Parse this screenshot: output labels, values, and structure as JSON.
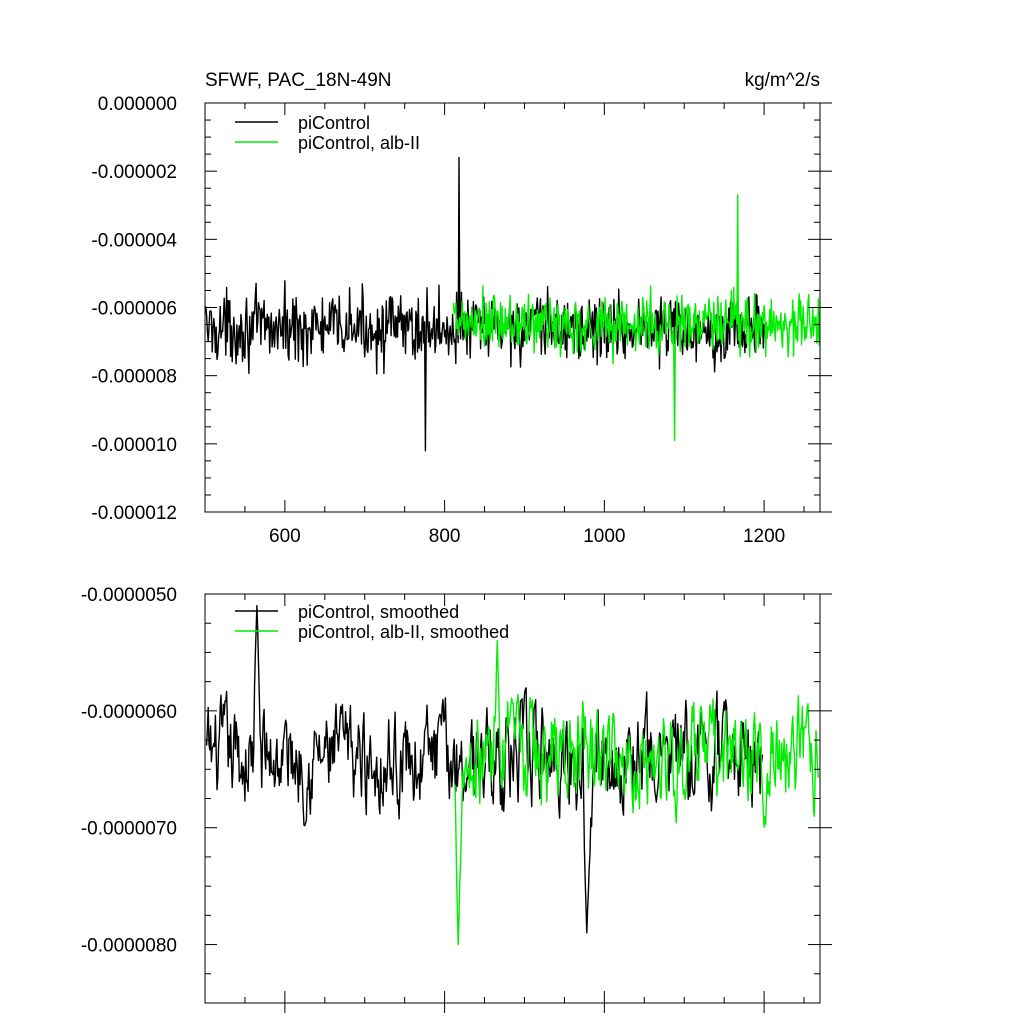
{
  "colors": {
    "black_series": "#000000",
    "green_series": "#00ee00",
    "background": "#ffffff"
  },
  "header": {
    "left": "SFWF, PAC_18N-49N",
    "right": "kg/m^2/s"
  },
  "chart_data": [
    {
      "type": "line",
      "panel": "top",
      "xlim": [
        500,
        1270
      ],
      "ylim": [
        -1.2e-05,
        0.0
      ],
      "xticks": [
        600,
        800,
        1000,
        1200
      ],
      "xtick_labels": [
        "600",
        "800",
        "1000",
        "1200"
      ],
      "yticks": [
        0.0,
        -2e-06,
        -4e-06,
        -6e-06,
        -8e-06,
        -1e-05,
        -1.2e-05
      ],
      "ytick_labels": [
        "0.000000",
        "-0.000002",
        "-0.000004",
        "-0.000006",
        "-0.000008",
        "-0.000010",
        "-0.000012"
      ],
      "legend_position": "top-left",
      "grid": false,
      "series": [
        {
          "name": "piControl",
          "color": "#000000",
          "x_range": [
            501,
            1200
          ],
          "mean": -6.6e-06,
          "noise": "high-frequency annual variability, amplitude about 0.0000015",
          "extrema": {
            "max": -1.6e-06,
            "max_x": 818,
            "min": -1.02e-05,
            "min_x": 776
          }
        },
        {
          "name": "piControl, alb-II",
          "color": "#00ee00",
          "x_range": [
            811,
            1270
          ],
          "mean": -6.5e-06,
          "noise": "high-frequency annual variability, amplitude about 0.0000014",
          "extrema": {
            "max": -2.7e-06,
            "max_x": 1167,
            "min": -9.9e-06,
            "min_x": 1088
          }
        }
      ]
    },
    {
      "type": "line",
      "panel": "bottom",
      "xlim": [
        500,
        1270
      ],
      "ylim": [
        -8.5e-06,
        -5e-06
      ],
      "xticks": [
        600,
        800,
        1000,
        1200
      ],
      "xtick_labels": [
        "",
        "",
        "",
        ""
      ],
      "yticks": [
        -5e-06,
        -6e-06,
        -7e-06,
        -8e-06
      ],
      "ytick_labels": [
        "-0.0000050",
        "-0.0000060",
        "-0.0000070",
        "-0.0000080"
      ],
      "legend_position": "top-left",
      "grid": false,
      "series": [
        {
          "name": "piControl, smoothed",
          "color": "#000000",
          "x_range": [
            502,
            1198
          ],
          "mean": -6.4e-06,
          "noise": "smoothed variability, amplitude about 0.0000005",
          "extrema": {
            "max": -5.1e-06,
            "max_x": 565,
            "min": -7.9e-06,
            "min_x": 978
          }
        },
        {
          "name": "piControl, alb-II, smoothed",
          "color": "#00ee00",
          "x_range": [
            813,
            1268
          ],
          "mean": -6.4e-06,
          "noise": "smoothed variability, amplitude about 0.0000005",
          "extrema": {
            "max": -5.4e-06,
            "max_x": 866,
            "min": -8e-06,
            "min_x": 817
          }
        }
      ]
    }
  ]
}
